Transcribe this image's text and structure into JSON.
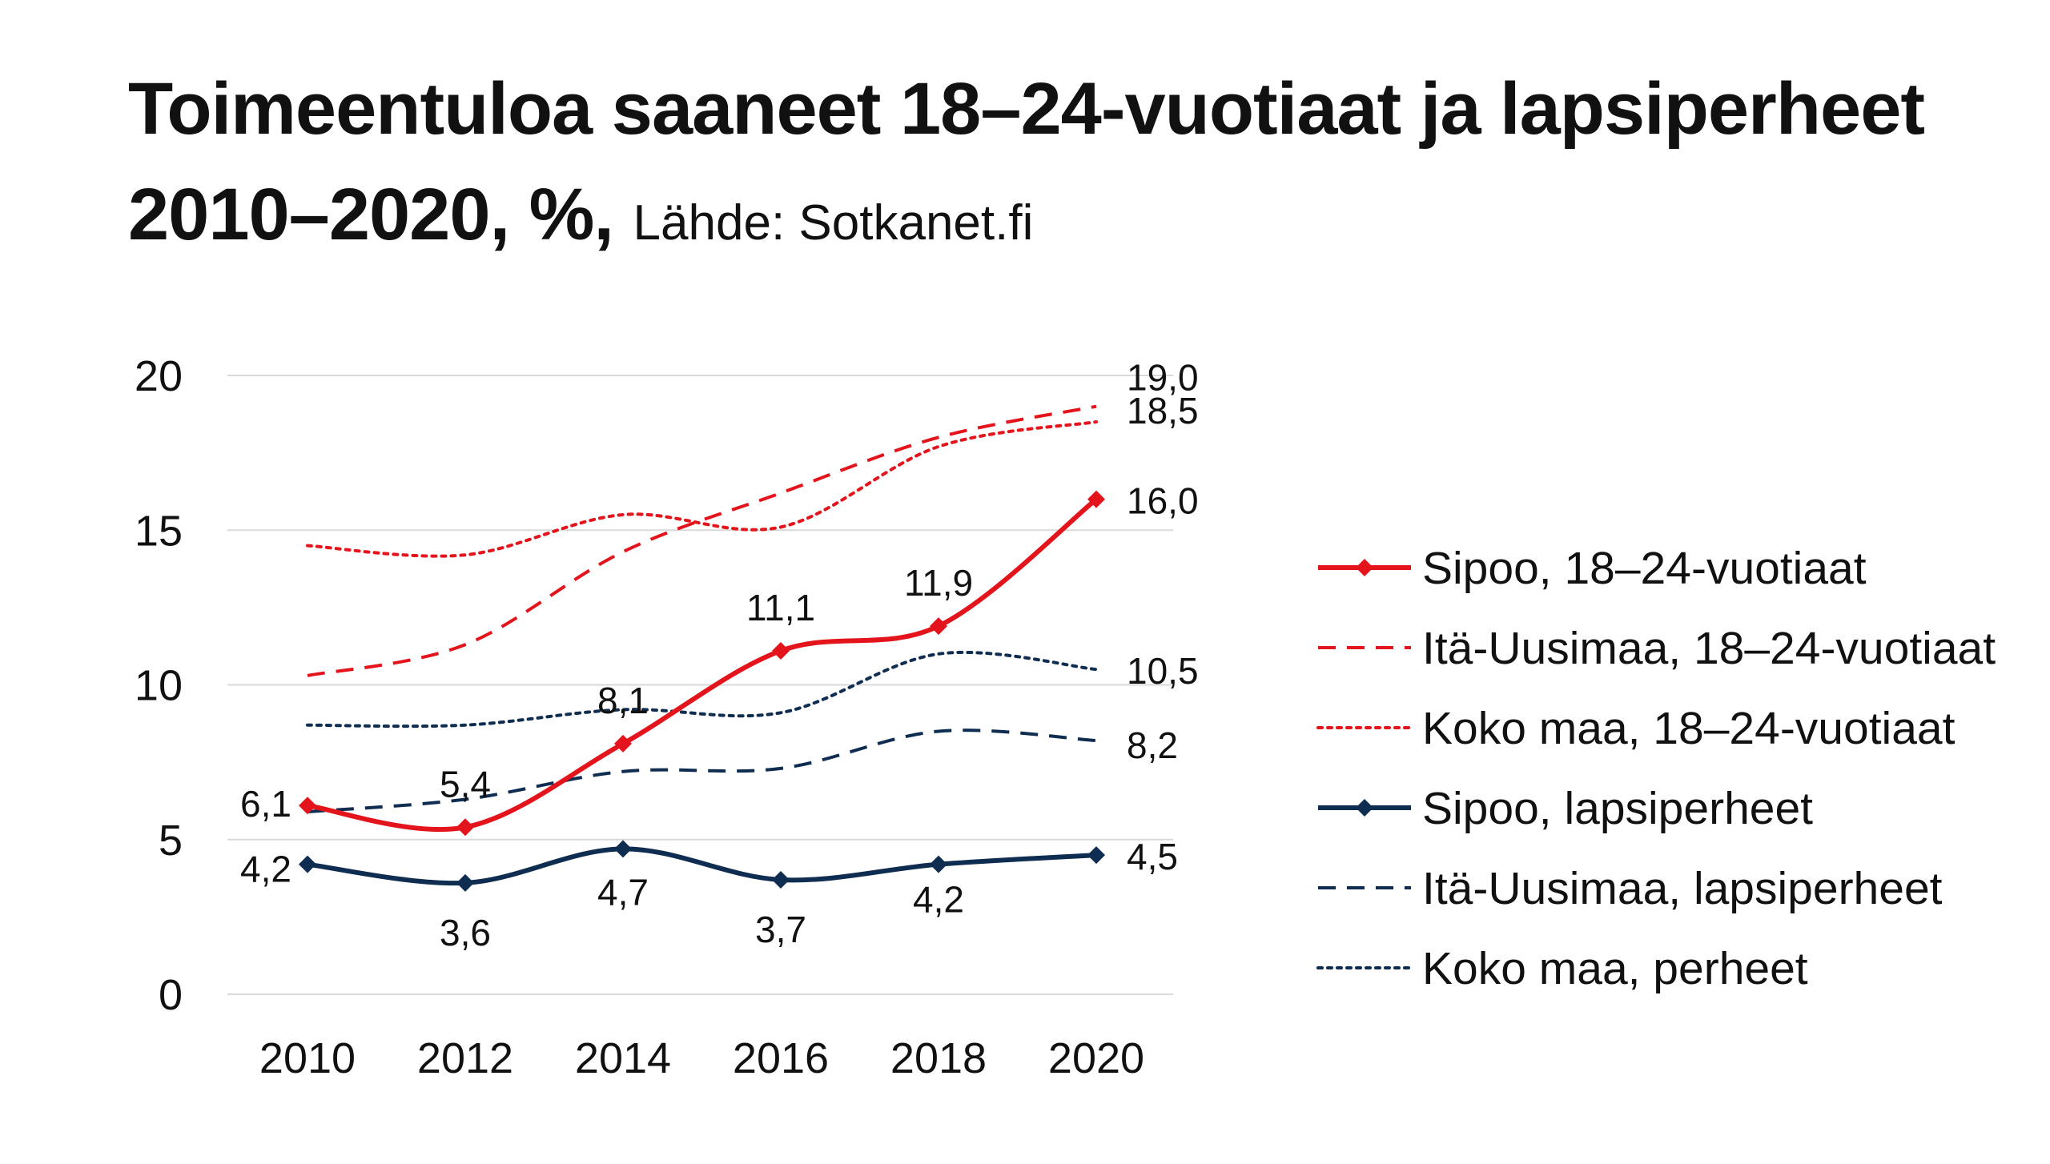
{
  "chart_data": {
    "type": "line",
    "title_line1": "Toimeentuloa saaneet 18–24-vuotiaat ja lapsiperheet",
    "title_line2": "2010–2020, %,",
    "source": "Lähde: Sotkanet.fi",
    "xlabel": "",
    "ylabel": "",
    "x": [
      2010,
      2012,
      2014,
      2016,
      2018,
      2020
    ],
    "x_tick_labels": [
      "2010",
      "2012",
      "2014",
      "2016",
      "2018",
      "2020"
    ],
    "ylim": [
      0,
      20
    ],
    "y_ticks": [
      0,
      5,
      10,
      15,
      20
    ],
    "y_tick_labels": [
      "0",
      "5",
      "10",
      "15",
      "20"
    ],
    "grid": true,
    "legend_position": "right",
    "series": [
      {
        "name": "Sipoo, 18–24-vuotiaat",
        "color": "#e3141b",
        "style": "solid",
        "marker": "diamond",
        "values": [
          6.1,
          5.4,
          8.1,
          11.1,
          11.9,
          16.0
        ],
        "labels": [
          "6,1",
          "5,4",
          "8,1",
          "11,1",
          "11,9",
          "16,0"
        ]
      },
      {
        "name": "Itä-Uusimaa, 18–24-vuotiaat",
        "color": "#e3141b",
        "style": "dashed",
        "marker": "none",
        "values": [
          10.3,
          11.3,
          14.3,
          16.2,
          18.0,
          19.0
        ],
        "labels": [
          "",
          "",
          "",
          "",
          "",
          "19,0"
        ]
      },
      {
        "name": "Koko maa, 18–24-vuotiaat",
        "color": "#e3141b",
        "style": "dotted",
        "marker": "none",
        "values": [
          14.5,
          14.2,
          15.5,
          15.1,
          17.7,
          18.5
        ],
        "labels": [
          "",
          "",
          "",
          "",
          "",
          "18,5"
        ]
      },
      {
        "name": "Sipoo, lapsiperheet",
        "color": "#0e2d50",
        "style": "solid",
        "marker": "diamond",
        "values": [
          4.2,
          3.6,
          4.7,
          3.7,
          4.2,
          4.5
        ],
        "labels": [
          "4,2",
          "3,6",
          "4,7",
          "3,7",
          "4,2",
          "4,5"
        ]
      },
      {
        "name": "Itä-Uusimaa, lapsiperheet",
        "color": "#0e2d50",
        "style": "dashed",
        "marker": "none",
        "values": [
          5.9,
          6.3,
          7.2,
          7.3,
          8.5,
          8.2
        ],
        "labels": [
          "",
          "",
          "",
          "",
          "",
          "8,2"
        ]
      },
      {
        "name": "Koko maa, perheet",
        "color": "#0e2d50",
        "style": "dotted",
        "marker": "none",
        "values": [
          8.7,
          8.7,
          9.2,
          9.1,
          11.0,
          10.5
        ],
        "labels": [
          "",
          "",
          "",
          "",
          "",
          "10,5"
        ]
      }
    ]
  }
}
